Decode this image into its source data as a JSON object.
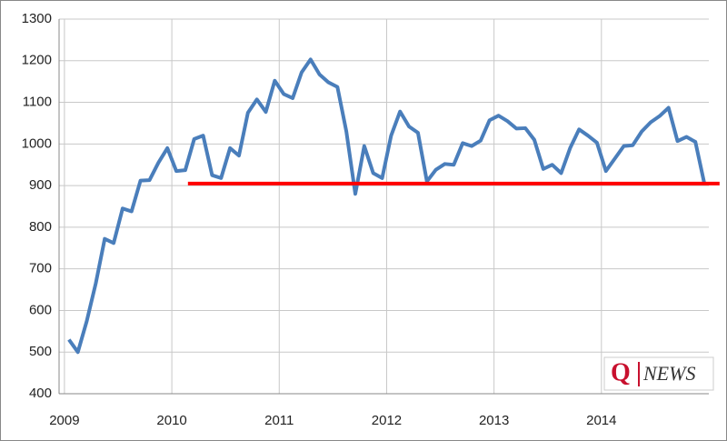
{
  "chart_data": {
    "type": "line",
    "x": [
      2009.0417,
      2009.125,
      2009.2083,
      2009.2917,
      2009.375,
      2009.4583,
      2009.5417,
      2009.625,
      2009.7083,
      2009.7917,
      2009.875,
      2009.9583,
      2010.0417,
      2010.125,
      2010.2083,
      2010.2917,
      2010.375,
      2010.4583,
      2010.5417,
      2010.625,
      2010.7083,
      2010.7917,
      2010.875,
      2010.9583,
      2011.0417,
      2011.125,
      2011.2083,
      2011.2917,
      2011.375,
      2011.4583,
      2011.5417,
      2011.625,
      2011.7083,
      2011.7917,
      2011.875,
      2011.9583,
      2012.0417,
      2012.125,
      2012.2083,
      2012.2917,
      2012.375,
      2012.4583,
      2012.5417,
      2012.625,
      2012.7083,
      2012.7917,
      2012.875,
      2012.9583,
      2013.0417,
      2013.125,
      2013.2083,
      2013.2917,
      2013.375,
      2013.4583,
      2013.5417,
      2013.625,
      2013.7083,
      2013.7917,
      2013.875,
      2013.9583,
      2014.0417,
      2014.125,
      2014.2083,
      2014.2917,
      2014.375,
      2014.4583,
      2014.5417,
      2014.625,
      2014.7083,
      2014.7917,
      2014.875,
      2014.9583
    ],
    "series": [
      {
        "color": "#4a7ebb",
        "values": [
          530,
          500,
          575,
          665,
          772,
          762,
          845,
          838,
          912,
          913,
          955,
          990,
          935,
          937,
          1012,
          1020,
          925,
          918,
          990,
          972,
          1075,
          1107,
          1077,
          1152,
          1120,
          1110,
          1172,
          1203,
          1167,
          1148,
          1137,
          1030,
          880,
          995,
          930,
          918,
          1020,
          1078,
          1042,
          1027,
          910,
          938,
          952,
          950,
          1002,
          995,
          1008,
          1057,
          1068,
          1055,
          1037,
          1038,
          1010,
          940,
          950,
          930,
          990,
          1035,
          1020,
          1003,
          935,
          965,
          995,
          997,
          1030,
          1052,
          1067,
          1087,
          1007,
          1017,
          1005,
          905
        ]
      }
    ],
    "reference_line": {
      "y": 905,
      "x": [
        2010.15,
        2015.1
      ],
      "color": "#ff0000"
    },
    "xlim": [
      2008.95,
      2015.0
    ],
    "xticks": [
      2009,
      2010,
      2011,
      2012,
      2013,
      2014
    ],
    "ylim": [
      400,
      1300
    ],
    "yticks": [
      400,
      500,
      600,
      700,
      800,
      900,
      1000,
      1100,
      1200,
      1300
    ],
    "grid": true,
    "logo": {
      "mark": "Q",
      "text": "NEWS"
    }
  }
}
